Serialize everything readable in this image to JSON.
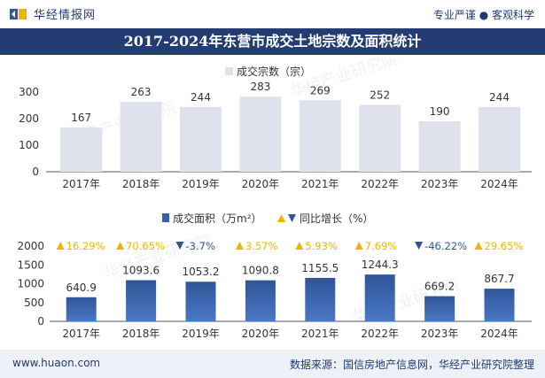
{
  "header": {
    "brand": "华经情报网",
    "slogan": "专业严谨 ● 客观科学"
  },
  "title": "2017-2024年东营市成交土地宗数及面积统计",
  "watermark": "华经产业研究院",
  "footer": {
    "website": "www.huaon.com",
    "source": "数据来源：国信房地产信息网，华经产业研究院整理"
  },
  "colors": {
    "title_bg": "#233d72",
    "bar_top": "#dfe2ec",
    "bar_bottom": "#3a5fa8",
    "up": "#f0b400",
    "down": "#2f5597"
  },
  "chart_data": [
    {
      "type": "bar",
      "categories": [
        "2017年",
        "2018年",
        "2019年",
        "2020年",
        "2021年",
        "2022年",
        "2023年",
        "2024年"
      ],
      "series": [
        {
          "name": "成交宗数（宗）",
          "values": [
            167,
            263,
            244,
            283,
            269,
            252,
            190,
            244
          ]
        }
      ],
      "yticks": [
        "0",
        "100",
        "200",
        "300"
      ],
      "ylim": [
        0,
        300
      ],
      "legend_position": "top-center",
      "grid": false
    },
    {
      "type": "bar",
      "categories": [
        "2017年",
        "2018年",
        "2019年",
        "2020年",
        "2021年",
        "2022年",
        "2023年",
        "2024年"
      ],
      "series": [
        {
          "name": "成交面积（万m²）",
          "values": [
            640.9,
            1093.6,
            1053.2,
            1090.8,
            1155.5,
            1244.3,
            669.2,
            867.7
          ]
        },
        {
          "name": "同比增长（%）",
          "values": [
            16.29,
            70.65,
            -3.7,
            3.57,
            5.93,
            7.69,
            -46.22,
            29.65
          ]
        }
      ],
      "value_labels": [
        "640.9",
        "1093.6",
        "1053.2",
        "1090.8",
        "1155.5",
        "1244.3",
        "669.2",
        "867.7"
      ],
      "growth_labels": [
        "16.29%",
        "70.65%",
        "-3.7%",
        "3.57%",
        "5.93%",
        "7.69%",
        "-46.22%",
        "29.65%"
      ],
      "yticks": [
        "0",
        "500",
        "1000",
        "1500",
        "2000"
      ],
      "ylim": [
        0,
        2000
      ],
      "legend_position": "top-center",
      "grid": false
    }
  ]
}
